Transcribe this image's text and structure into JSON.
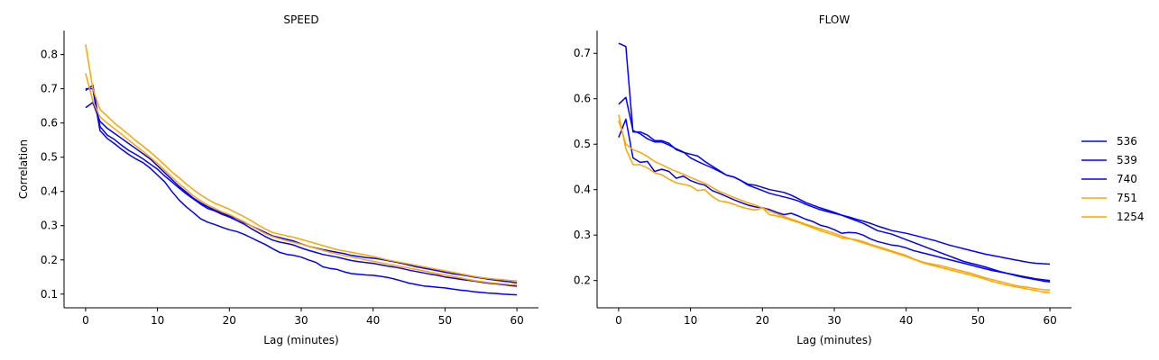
{
  "figure": {
    "ylabel": "Correlation",
    "legend": {
      "placement": "right",
      "entries": [
        {
          "label": "536",
          "color": "#0000ff"
        },
        {
          "label": "539",
          "color": "#0000ff"
        },
        {
          "label": "740",
          "color": "#0000ff"
        },
        {
          "label": "751",
          "color": "#ffa500"
        },
        {
          "label": "1254",
          "color": "#ffa500"
        }
      ]
    }
  },
  "chart_data": [
    {
      "type": "line",
      "title": "SPEED",
      "xlabel": "Lag (minutes)",
      "ylabel": "Correlation",
      "xlim": [
        -3,
        63
      ],
      "ylim": [
        0.06,
        0.87
      ],
      "xticks": [
        0,
        10,
        20,
        30,
        40,
        50,
        60
      ],
      "yticks": [
        0.1,
        0.2,
        0.3,
        0.4,
        0.5,
        0.6,
        0.7,
        0.8
      ],
      "grid": false,
      "x": [
        0,
        1,
        2,
        3,
        4,
        5,
        6,
        7,
        8,
        9,
        10,
        11,
        12,
        13,
        14,
        15,
        16,
        17,
        18,
        19,
        20,
        21,
        22,
        23,
        24,
        25,
        26,
        27,
        28,
        29,
        30,
        31,
        32,
        33,
        34,
        35,
        36,
        37,
        38,
        39,
        40,
        41,
        42,
        43,
        44,
        45,
        46,
        47,
        48,
        49,
        50,
        51,
        52,
        53,
        54,
        55,
        56,
        57,
        58,
        59,
        60
      ],
      "series": [
        {
          "name": "536",
          "color": "#0000ff",
          "values": [
            0.7,
            0.7,
            0.578,
            0.555,
            0.54,
            0.523,
            0.508,
            0.495,
            0.484,
            0.468,
            0.448,
            0.428,
            0.4,
            0.375,
            0.355,
            0.338,
            0.32,
            0.31,
            0.303,
            0.295,
            0.288,
            0.283,
            0.275,
            0.265,
            0.255,
            0.245,
            0.233,
            0.222,
            0.216,
            0.213,
            0.208,
            0.2,
            0.193,
            0.18,
            0.175,
            0.172,
            0.165,
            0.16,
            0.158,
            0.156,
            0.155,
            0.152,
            0.149,
            0.144,
            0.138,
            0.132,
            0.128,
            0.124,
            0.122,
            0.12,
            0.118,
            0.115,
            0.112,
            0.11,
            0.107,
            0.105,
            0.103,
            0.102,
            0.1,
            0.099,
            0.098
          ]
        },
        {
          "name": "539",
          "color": "#0000ff",
          "values": [
            0.695,
            0.71,
            0.59,
            0.565,
            0.552,
            0.535,
            0.52,
            0.508,
            0.495,
            0.48,
            0.465,
            0.445,
            0.428,
            0.41,
            0.393,
            0.378,
            0.363,
            0.35,
            0.343,
            0.333,
            0.325,
            0.315,
            0.305,
            0.292,
            0.28,
            0.268,
            0.258,
            0.252,
            0.248,
            0.243,
            0.235,
            0.228,
            0.222,
            0.216,
            0.212,
            0.208,
            0.203,
            0.198,
            0.195,
            0.192,
            0.19,
            0.186,
            0.182,
            0.179,
            0.175,
            0.17,
            0.166,
            0.162,
            0.158,
            0.155,
            0.15,
            0.147,
            0.144,
            0.141,
            0.138,
            0.135,
            0.132,
            0.13,
            0.128,
            0.125,
            0.123
          ]
        },
        {
          "name": "740",
          "color": "#0000ff",
          "values": [
            0.645,
            0.66,
            0.605,
            0.585,
            0.57,
            0.555,
            0.54,
            0.525,
            0.51,
            0.495,
            0.475,
            0.455,
            0.435,
            0.415,
            0.398,
            0.38,
            0.367,
            0.355,
            0.345,
            0.337,
            0.328,
            0.32,
            0.31,
            0.3,
            0.29,
            0.28,
            0.27,
            0.265,
            0.26,
            0.255,
            0.247,
            0.24,
            0.235,
            0.23,
            0.226,
            0.222,
            0.218,
            0.213,
            0.21,
            0.207,
            0.205,
            0.202,
            0.198,
            0.194,
            0.19,
            0.185,
            0.18,
            0.176,
            0.172,
            0.168,
            0.164,
            0.16,
            0.157,
            0.154,
            0.15,
            0.147,
            0.144,
            0.141,
            0.138,
            0.136,
            0.133
          ]
        },
        {
          "name": "751",
          "color": "#ffa500",
          "values": [
            0.83,
            0.7,
            0.64,
            0.62,
            0.6,
            0.583,
            0.566,
            0.548,
            0.532,
            0.515,
            0.497,
            0.477,
            0.457,
            0.44,
            0.422,
            0.405,
            0.39,
            0.377,
            0.365,
            0.357,
            0.348,
            0.337,
            0.327,
            0.315,
            0.302,
            0.29,
            0.28,
            0.275,
            0.27,
            0.266,
            0.26,
            0.254,
            0.248,
            0.242,
            0.236,
            0.23,
            0.226,
            0.222,
            0.218,
            0.214,
            0.21,
            0.205,
            0.2,
            0.196,
            0.192,
            0.188,
            0.184,
            0.18,
            0.176,
            0.172,
            0.168,
            0.164,
            0.16,
            0.156,
            0.152,
            0.149,
            0.146,
            0.144,
            0.142,
            0.14,
            0.139
          ]
        },
        {
          "name": "1254",
          "color": "#ffa500",
          "values": [
            0.745,
            0.665,
            0.618,
            0.6,
            0.584,
            0.567,
            0.55,
            0.533,
            0.517,
            0.5,
            0.482,
            0.462,
            0.442,
            0.423,
            0.405,
            0.387,
            0.373,
            0.36,
            0.35,
            0.34,
            0.333,
            0.322,
            0.312,
            0.3,
            0.288,
            0.277,
            0.268,
            0.262,
            0.256,
            0.251,
            0.246,
            0.24,
            0.234,
            0.228,
            0.222,
            0.217,
            0.212,
            0.208,
            0.204,
            0.2,
            0.196,
            0.192,
            0.188,
            0.184,
            0.18,
            0.176,
            0.172,
            0.168,
            0.164,
            0.16,
            0.156,
            0.152,
            0.148,
            0.144,
            0.14,
            0.137,
            0.134,
            0.132,
            0.13,
            0.128,
            0.127
          ]
        }
      ]
    },
    {
      "type": "line",
      "title": "FLOW",
      "xlabel": "Lag (minutes)",
      "ylabel": "",
      "xlim": [
        -3,
        63
      ],
      "ylim": [
        0.14,
        0.75
      ],
      "xticks": [
        0,
        10,
        20,
        30,
        40,
        50,
        60
      ],
      "yticks": [
        0.2,
        0.3,
        0.4,
        0.5,
        0.6,
        0.7
      ],
      "grid": false,
      "x": [
        0,
        1,
        2,
        3,
        4,
        5,
        6,
        7,
        8,
        9,
        10,
        11,
        12,
        13,
        14,
        15,
        16,
        17,
        18,
        19,
        20,
        21,
        22,
        23,
        24,
        25,
        26,
        27,
        28,
        29,
        30,
        31,
        32,
        33,
        34,
        35,
        36,
        37,
        38,
        39,
        40,
        41,
        42,
        43,
        44,
        45,
        46,
        47,
        48,
        49,
        50,
        51,
        52,
        53,
        54,
        55,
        56,
        57,
        58,
        59,
        60
      ],
      "series": [
        {
          "name": "536",
          "color": "#0000ff",
          "values": [
            0.722,
            0.715,
            0.527,
            0.527,
            0.52,
            0.508,
            0.508,
            0.502,
            0.488,
            0.482,
            0.478,
            0.474,
            0.462,
            0.452,
            0.442,
            0.432,
            0.428,
            0.42,
            0.412,
            0.41,
            0.405,
            0.4,
            0.397,
            0.394,
            0.388,
            0.38,
            0.372,
            0.366,
            0.36,
            0.355,
            0.35,
            0.344,
            0.34,
            0.335,
            0.331,
            0.326,
            0.32,
            0.315,
            0.31,
            0.307,
            0.304,
            0.3,
            0.296,
            0.292,
            0.288,
            0.283,
            0.278,
            0.274,
            0.27,
            0.266,
            0.262,
            0.258,
            0.255,
            0.252,
            0.249,
            0.246,
            0.243,
            0.24,
            0.238,
            0.237,
            0.236
          ]
        },
        {
          "name": "539",
          "color": "#0000ff",
          "values": [
            0.515,
            0.555,
            0.47,
            0.46,
            0.462,
            0.44,
            0.445,
            0.44,
            0.425,
            0.43,
            0.42,
            0.414,
            0.41,
            0.398,
            0.392,
            0.385,
            0.378,
            0.372,
            0.366,
            0.362,
            0.36,
            0.356,
            0.35,
            0.345,
            0.348,
            0.342,
            0.335,
            0.33,
            0.322,
            0.318,
            0.312,
            0.304,
            0.306,
            0.305,
            0.3,
            0.292,
            0.286,
            0.282,
            0.278,
            0.276,
            0.272,
            0.266,
            0.262,
            0.258,
            0.254,
            0.25,
            0.246,
            0.242,
            0.238,
            0.234,
            0.23,
            0.226,
            0.222,
            0.219,
            0.216,
            0.213,
            0.21,
            0.207,
            0.204,
            0.202,
            0.2
          ]
        },
        {
          "name": "740",
          "color": "#0000ff",
          "values": [
            0.588,
            0.603,
            0.53,
            0.523,
            0.512,
            0.505,
            0.505,
            0.498,
            0.49,
            0.483,
            0.47,
            0.462,
            0.455,
            0.448,
            0.44,
            0.432,
            0.428,
            0.42,
            0.41,
            0.404,
            0.398,
            0.392,
            0.388,
            0.384,
            0.38,
            0.375,
            0.368,
            0.362,
            0.356,
            0.352,
            0.348,
            0.344,
            0.338,
            0.332,
            0.326,
            0.318,
            0.31,
            0.306,
            0.302,
            0.296,
            0.29,
            0.284,
            0.278,
            0.272,
            0.266,
            0.26,
            0.254,
            0.248,
            0.242,
            0.238,
            0.234,
            0.23,
            0.225,
            0.22,
            0.216,
            0.212,
            0.208,
            0.205,
            0.202,
            0.199,
            0.197
          ]
        },
        {
          "name": "751",
          "color": "#ffa500",
          "values": [
            0.565,
            0.49,
            0.455,
            0.455,
            0.448,
            0.437,
            0.433,
            0.423,
            0.415,
            0.412,
            0.408,
            0.398,
            0.4,
            0.385,
            0.375,
            0.373,
            0.368,
            0.362,
            0.358,
            0.355,
            0.36,
            0.345,
            0.342,
            0.338,
            0.333,
            0.328,
            0.322,
            0.316,
            0.31,
            0.305,
            0.3,
            0.294,
            0.292,
            0.29,
            0.286,
            0.28,
            0.275,
            0.27,
            0.265,
            0.26,
            0.255,
            0.248,
            0.242,
            0.238,
            0.235,
            0.232,
            0.228,
            0.224,
            0.22,
            0.216,
            0.211,
            0.206,
            0.202,
            0.198,
            0.194,
            0.19,
            0.187,
            0.185,
            0.182,
            0.18,
            0.179
          ]
        },
        {
          "name": "1254",
          "color": "#ffa500",
          "values": [
            0.552,
            0.5,
            0.488,
            0.482,
            0.473,
            0.462,
            0.455,
            0.447,
            0.44,
            0.434,
            0.427,
            0.42,
            0.414,
            0.405,
            0.396,
            0.39,
            0.383,
            0.377,
            0.371,
            0.366,
            0.36,
            0.353,
            0.347,
            0.341,
            0.335,
            0.33,
            0.324,
            0.319,
            0.314,
            0.309,
            0.304,
            0.298,
            0.293,
            0.288,
            0.283,
            0.278,
            0.273,
            0.268,
            0.263,
            0.258,
            0.253,
            0.247,
            0.241,
            0.236,
            0.232,
            0.228,
            0.224,
            0.22,
            0.216,
            0.212,
            0.208,
            0.203,
            0.198,
            0.194,
            0.19,
            0.187,
            0.184,
            0.181,
            0.178,
            0.175,
            0.173
          ]
        }
      ]
    }
  ]
}
